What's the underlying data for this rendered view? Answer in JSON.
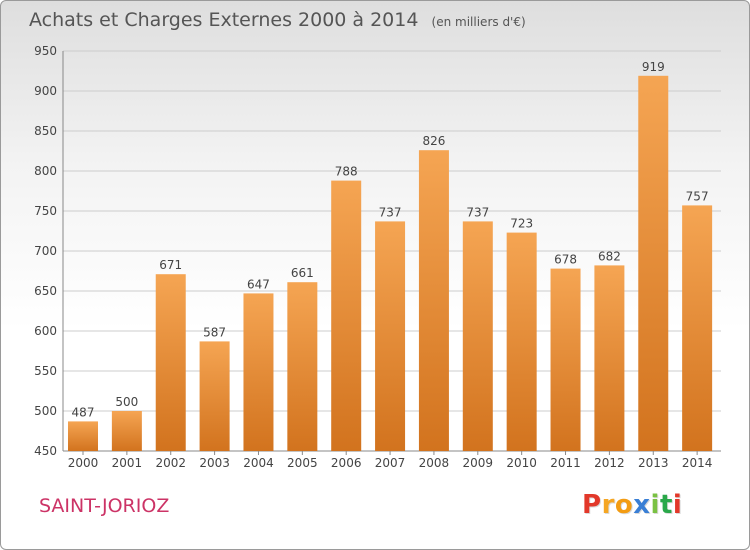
{
  "title": "Achats et Charges Externes 2000 à 2014",
  "unit_label": "(en milliers d'€)",
  "city": "SAINT-JORIOZ",
  "brand": {
    "letters": [
      "P",
      "r",
      "o",
      "x",
      "i",
      "t",
      "i"
    ],
    "colors": [
      "#e2382a",
      "#f5a623",
      "#f39c12",
      "#3a7fd5",
      "#7ac143",
      "#2aa84a",
      "#e2382a"
    ]
  },
  "colors": {
    "bar_light": "#f5a553",
    "bar_dark": "#d2731e",
    "grid": "#cccccc",
    "text": "#444444",
    "city": "#cc3366"
  },
  "chart_data": {
    "type": "bar",
    "title": "Achats et Charges Externes 2000 à 2014",
    "subtitle": "(en milliers d'€)",
    "categories": [
      "2000",
      "2001",
      "2002",
      "2003",
      "2004",
      "2005",
      "2006",
      "2007",
      "2008",
      "2009",
      "2010",
      "2011",
      "2012",
      "2013",
      "2014"
    ],
    "values": [
      487,
      500,
      671,
      587,
      647,
      661,
      788,
      737,
      826,
      737,
      723,
      678,
      682,
      919,
      757
    ],
    "ylim": [
      450,
      950
    ],
    "yticks": [
      450,
      500,
      550,
      600,
      650,
      700,
      750,
      800,
      850,
      900,
      950
    ],
    "grid": true,
    "xlabel": "",
    "ylabel": ""
  }
}
